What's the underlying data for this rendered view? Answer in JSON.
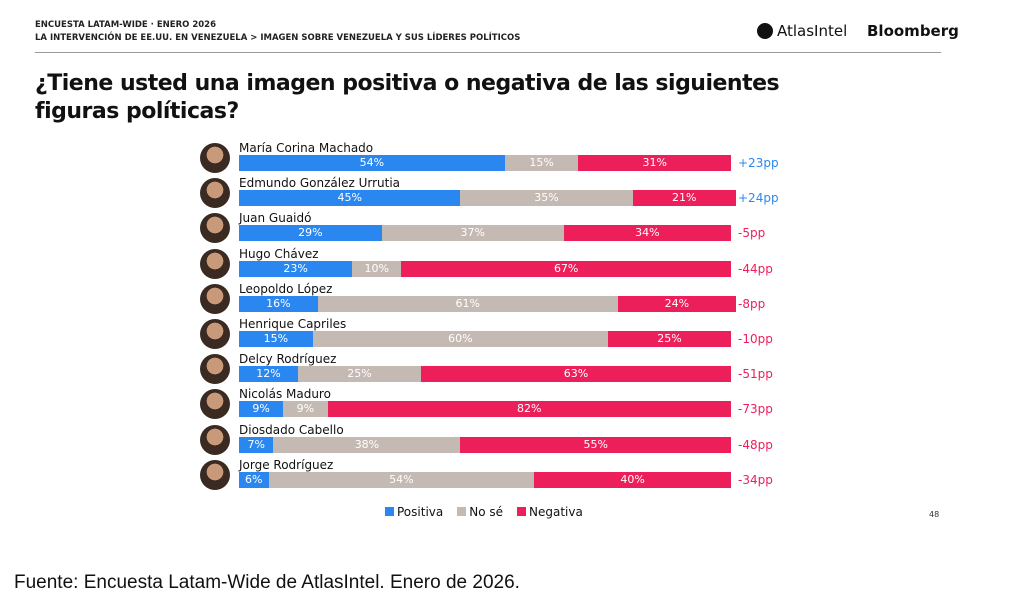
{
  "header": {
    "line1": "ENCUESTA LATAM-WIDE · ENERO 2026",
    "line2": "LA INTERVENCIÓN DE EE.UU. EN VENEZUELA > IMAGEN SOBRE VENEZUELA Y SUS LÍDERES POLÍTICOS",
    "brand1": "AtlasIntel",
    "brand2": "Bloomberg"
  },
  "title": "¿Tiene usted una imagen positiva o negativa de las siguientes figuras políticas?",
  "page_number": "48",
  "source": "Fuente: Encuesta Latam-Wide de AtlasIntel. Enero de 2026.",
  "colors": {
    "positiva": "#2B87F0",
    "no_se": "#C5BAB3",
    "negativa": "#EC1F5B"
  },
  "chart_data": {
    "type": "bar",
    "stacked": true,
    "orientation": "horizontal",
    "legend_position": "bottom",
    "categories": [
      "María Corina Machado",
      "Edmundo González Urrutia",
      "Juan Guaidó",
      "Hugo Chávez",
      "Leopoldo López",
      "Henrique Capriles",
      "Delcy Rodríguez",
      "Nicolás Maduro",
      "Diosdado Cabello",
      "Jorge Rodríguez"
    ],
    "series": [
      {
        "name": "Positiva",
        "values": [
          54,
          45,
          29,
          23,
          16,
          15,
          12,
          9,
          7,
          6
        ]
      },
      {
        "name": "No sé",
        "values": [
          15,
          35,
          37,
          10,
          61,
          60,
          25,
          9,
          38,
          54
        ]
      },
      {
        "name": "Negativa",
        "values": [
          31,
          21,
          34,
          67,
          24,
          25,
          63,
          82,
          55,
          40
        ]
      }
    ],
    "net_labels": [
      "+23pp",
      "+24pp",
      "-5pp",
      "-44pp",
      "-8pp",
      "-10pp",
      "-51pp",
      "-73pp",
      "-48pp",
      "-34pp"
    ]
  }
}
